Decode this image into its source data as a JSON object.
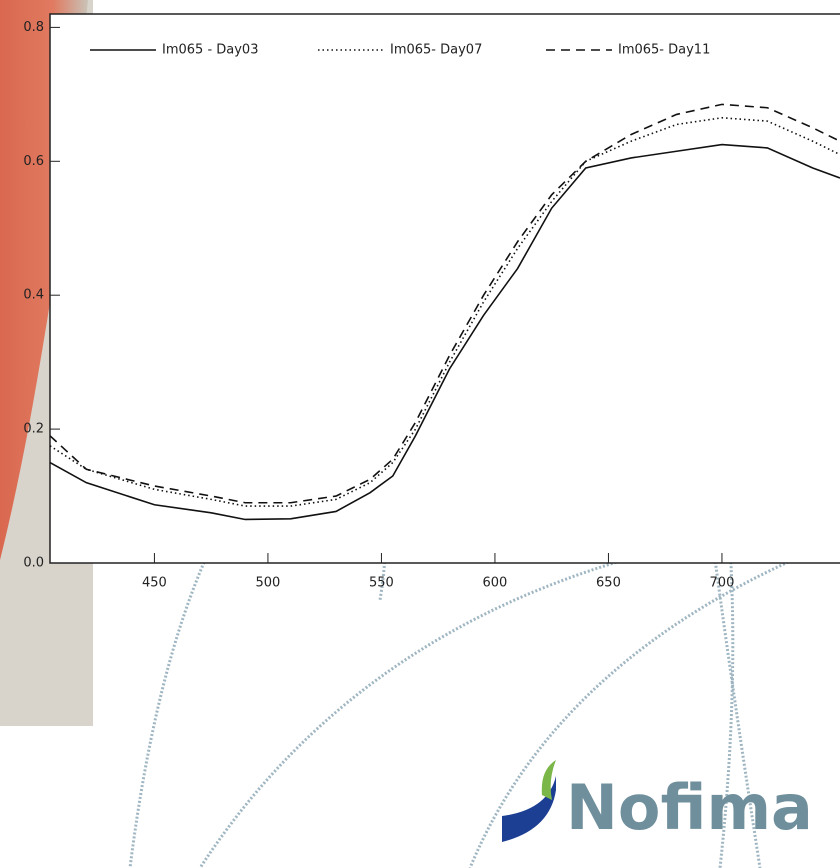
{
  "chart_data": {
    "type": "line",
    "x": [
      404,
      420,
      450,
      475,
      490,
      510,
      530,
      545,
      555,
      565,
      580,
      595,
      610,
      625,
      640,
      660,
      680,
      700,
      720,
      740,
      752
    ],
    "series": [
      {
        "name": "Im065 - Day03",
        "color": "#111111",
        "dash": "solid",
        "values": [
          0.15,
          0.12,
          0.087,
          0.075,
          0.065,
          0.066,
          0.077,
          0.105,
          0.13,
          0.19,
          0.29,
          0.37,
          0.44,
          0.53,
          0.59,
          0.605,
          0.615,
          0.625,
          0.62,
          0.59,
          0.575
        ]
      },
      {
        "name": "Im065- Day07",
        "color": "#111111",
        "dash": "dotted",
        "values": [
          0.175,
          0.14,
          0.11,
          0.095,
          0.085,
          0.085,
          0.095,
          0.12,
          0.15,
          0.2,
          0.3,
          0.39,
          0.47,
          0.54,
          0.6,
          0.63,
          0.655,
          0.665,
          0.66,
          0.63,
          0.61
        ]
      },
      {
        "name": "Im065- Day11",
        "color": "#111111",
        "dash": "dashed",
        "values": [
          0.19,
          0.14,
          0.115,
          0.1,
          0.09,
          0.09,
          0.1,
          0.125,
          0.155,
          0.21,
          0.31,
          0.4,
          0.48,
          0.55,
          0.6,
          0.64,
          0.67,
          0.685,
          0.68,
          0.65,
          0.63
        ]
      }
    ],
    "xlim": [
      404,
      752
    ],
    "xticks": [
      450,
      500,
      550,
      600,
      650,
      700
    ],
    "ylim": [
      0,
      0.82
    ],
    "yticks": [
      {
        "value": 0,
        "label": "0.0"
      },
      0.2,
      0.4,
      0.6,
      0.8
    ],
    "legend": "top"
  },
  "logo_text": "Nofima"
}
